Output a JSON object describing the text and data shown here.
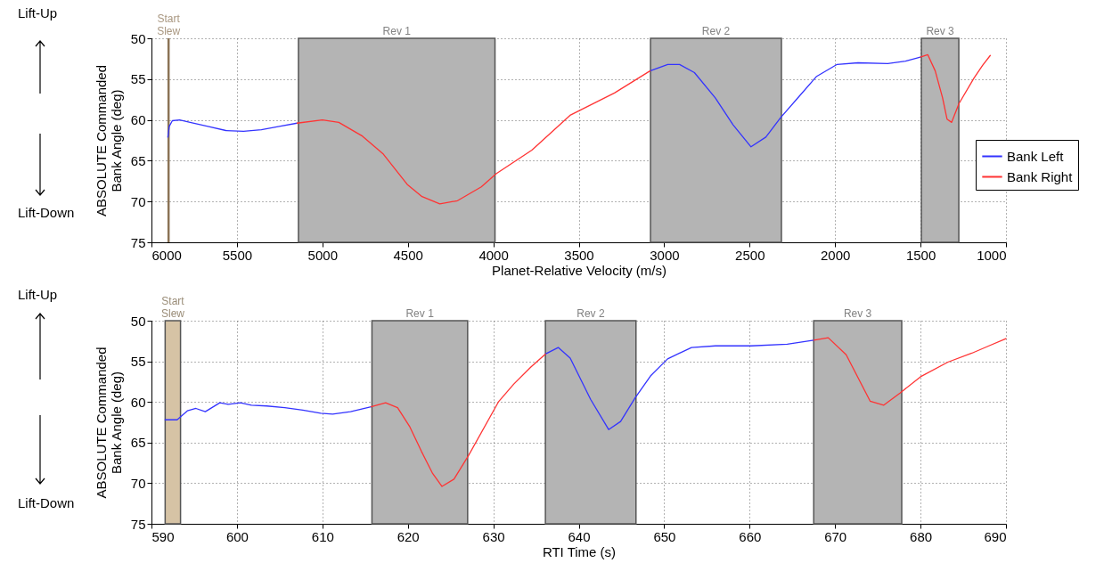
{
  "chart_data": [
    {
      "type": "line",
      "xlabel": "Planet-Relative Velocity (m/s)",
      "ylabel": "ABSOLUTE Commanded Bank Angle (deg)",
      "xlim": [
        6000,
        1000
      ],
      "xticks": [
        6000,
        5500,
        5000,
        4500,
        4000,
        3500,
        3000,
        2500,
        2000,
        1500,
        1000
      ],
      "ylim": [
        75,
        50
      ],
      "yticks": [
        50,
        55,
        60,
        65,
        70,
        75
      ],
      "grid": true,
      "legend": "right",
      "line_style": "solid",
      "annotations": [
        "Lift-Up",
        "Lift-Down"
      ],
      "ref_lines": [
        {
          "axis": "x",
          "value": 5900,
          "label": "Start Slew",
          "color": "#8b7355"
        }
      ],
      "bands": [
        {
          "axis": "x",
          "from": 5140,
          "to": 3990,
          "label": "Rev 1",
          "color": "#b4b4b4"
        },
        {
          "axis": "x",
          "from": 3080,
          "to": 2314,
          "label": "Rev 2",
          "color": "#b4b4b4"
        },
        {
          "axis": "x",
          "from": 1495,
          "to": 1276,
          "label": "Rev 3",
          "color": "#b4b4b4"
        }
      ],
      "series": [
        {
          "name": "Bank Left",
          "color": "#3333ff",
          "x": [
            5904,
            5896,
            5878,
            5835,
            5774,
            5670,
            5565,
            5461,
            5357,
            5252,
            5148,
            4000,
            3083,
            2979,
            2910,
            2823,
            2701,
            2597,
            2492,
            2405,
            2318,
            2214,
            2110,
            1988,
            1866,
            1692,
            1588,
            1501
          ],
          "values": [
            62.1,
            60.8,
            60.1,
            60.0,
            60.3,
            60.8,
            61.3,
            61.4,
            61.2,
            60.8,
            60.4,
            null,
            54.0,
            53.2,
            53.2,
            54.2,
            57.3,
            60.6,
            63.3,
            62.1,
            59.7,
            57.2,
            54.7,
            53.2,
            53.0,
            53.1,
            52.8,
            52.3
          ]
        },
        {
          "name": "Bank Right",
          "color": "#ff3333",
          "x": [
            5148,
            5000,
            4904,
            4765,
            4643,
            4504,
            4417,
            4313,
            4209,
            4070,
            3983,
            3774,
            3548,
            3291,
            3083,
            2000,
            1501,
            1458,
            1414,
            1371,
            1345,
            1318,
            1275,
            1188,
            1136,
            1092
          ],
          "values": [
            60.4,
            60.0,
            60.3,
            62.0,
            64.2,
            67.9,
            69.4,
            70.3,
            69.9,
            68.2,
            66.6,
            63.7,
            59.4,
            56.7,
            54.0,
            null,
            52.3,
            52.0,
            54.0,
            57.3,
            59.9,
            60.3,
            58.0,
            54.9,
            53.3,
            52.1
          ]
        }
      ]
    },
    {
      "type": "line",
      "xlabel": "RTI Time (s)",
      "ylabel": "ABSOLUTE Commanded Bank Angle (deg)",
      "xlim": [
        590,
        690
      ],
      "xticks": [
        590,
        600,
        610,
        620,
        630,
        640,
        650,
        660,
        670,
        680,
        690
      ],
      "ylim": [
        75,
        50
      ],
      "yticks": [
        50,
        55,
        60,
        65,
        70,
        75
      ],
      "grid": true,
      "line_style": "solid",
      "annotations": [
        "Lift-Up",
        "Lift-Down"
      ],
      "bands": [
        {
          "axis": "x",
          "from": 591.6,
          "to": 593.4,
          "label": "Start Slew",
          "color": "#d6c3a5"
        },
        {
          "axis": "x",
          "from": 615.8,
          "to": 627.0,
          "label": "Rev 1",
          "color": "#b4b4b4"
        },
        {
          "axis": "x",
          "from": 636.1,
          "to": 646.7,
          "label": "Rev 2",
          "color": "#b4b4b4"
        },
        {
          "axis": "x",
          "from": 667.5,
          "to": 677.8,
          "label": "Rev 3",
          "color": "#b4b4b4"
        }
      ],
      "series": [
        {
          "color": "#3333ff",
          "x": [
            591.6,
            593.0,
            594.2,
            595.2,
            596.3,
            598.0,
            599.0,
            600.4,
            601.7,
            603.5,
            605.6,
            607.7,
            609.8,
            611.2,
            613.3,
            615.7,
            626.0,
            636.1,
            637.6,
            639.0,
            641.4,
            643.5,
            644.9,
            646.6,
            648.4,
            650.4,
            653.2,
            656.0,
            660.2,
            664.4,
            667.5
          ],
          "values": [
            62.2,
            62.2,
            61.1,
            60.8,
            61.2,
            60.1,
            60.3,
            60.1,
            60.4,
            60.5,
            60.7,
            61.0,
            61.4,
            61.5,
            61.2,
            60.6,
            null,
            54.1,
            53.3,
            54.6,
            59.7,
            63.4,
            62.4,
            59.5,
            56.8,
            54.7,
            53.3,
            53.1,
            53.1,
            52.9,
            52.4
          ]
        },
        {
          "color": "#ff3333",
          "x": [
            615.7,
            617.4,
            618.8,
            620.2,
            621.6,
            622.9,
            624.0,
            625.4,
            627.1,
            630.6,
            632.4,
            634.4,
            636.1,
            650.0,
            667.5,
            669.2,
            671.3,
            674.1,
            675.7,
            677.6,
            680.0,
            683.2,
            686.0,
            688.0,
            690.0
          ],
          "values": [
            60.6,
            60.1,
            60.7,
            63.0,
            66.1,
            68.8,
            70.4,
            69.5,
            66.6,
            60.0,
            57.8,
            55.7,
            54.1,
            null,
            52.4,
            52.1,
            54.2,
            59.9,
            60.4,
            58.9,
            56.9,
            55.1,
            54.0,
            53.1,
            52.2
          ]
        }
      ]
    }
  ]
}
